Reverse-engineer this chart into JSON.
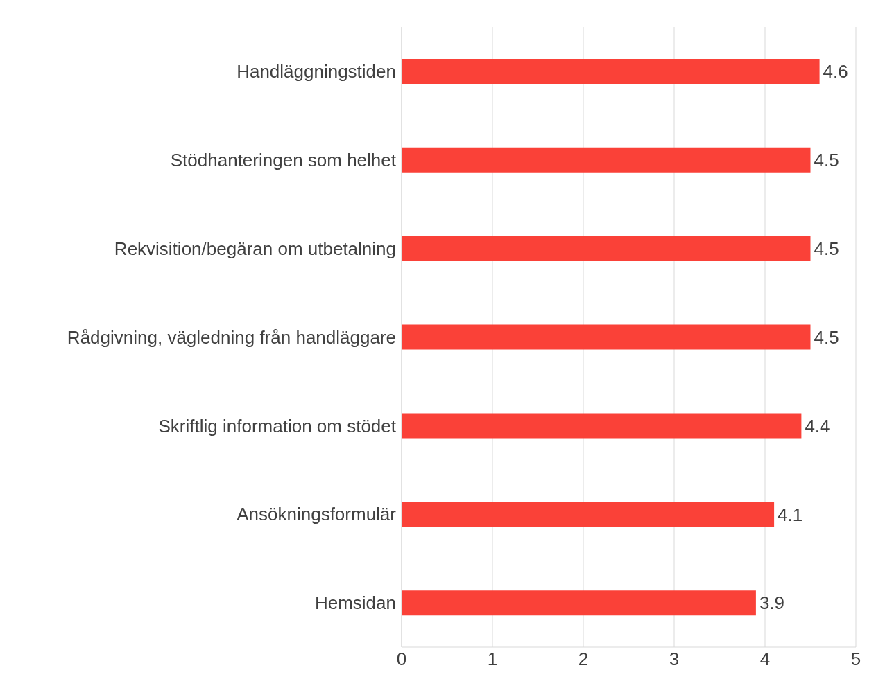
{
  "chart_data": {
    "type": "bar",
    "orientation": "horizontal",
    "categories": [
      "Handläggningstiden",
      "Stödhanteringen som helhet",
      "Rekvisition/begäran om utbetalning",
      "Rådgivning, vägledning från handläggare",
      "Skriftlig information om stödet",
      "Ansökningsformulär",
      "Hemsidan"
    ],
    "values": [
      4.6,
      4.5,
      4.5,
      4.5,
      4.4,
      4.1,
      3.9
    ],
    "color": "#fa4138",
    "xlim": [
      0,
      5
    ],
    "xticks": [
      0,
      1,
      2,
      3,
      4,
      5
    ],
    "data_labels": true,
    "grid": "x"
  }
}
